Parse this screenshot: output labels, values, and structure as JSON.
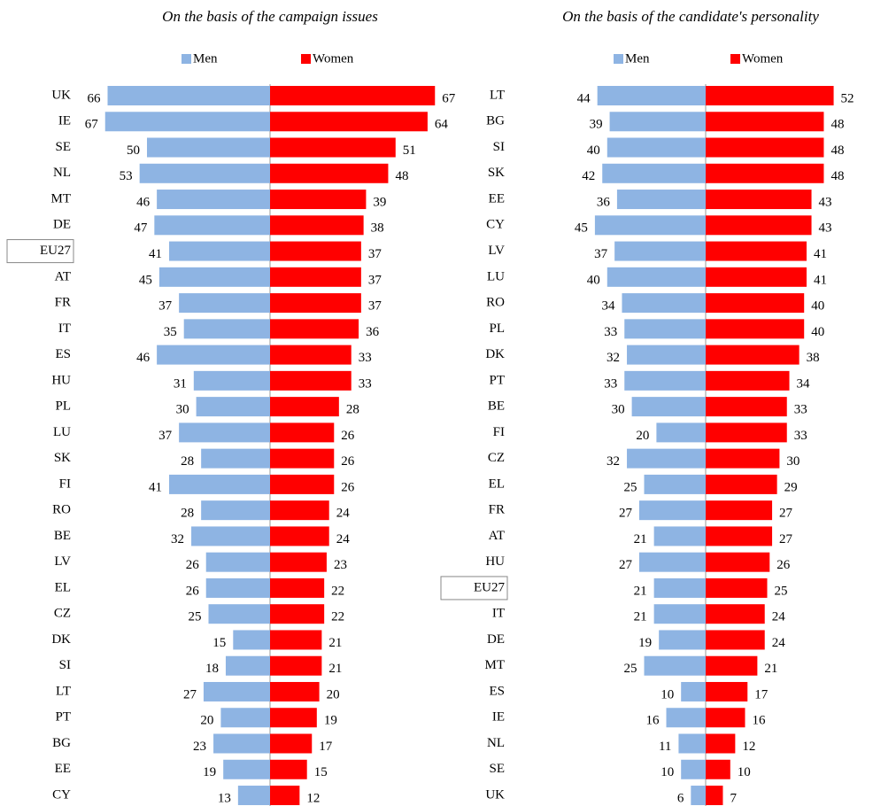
{
  "chart_data": [
    {
      "type": "butterfly",
      "title": "On the basis of the campaign issues",
      "highlight": "EU27",
      "categories": [
        "UK",
        "IE",
        "SE",
        "NL",
        "MT",
        "DE",
        "EU27",
        "AT",
        "FR",
        "IT",
        "ES",
        "HU",
        "PL",
        "LU",
        "SK",
        "FI",
        "RO",
        "BE",
        "LV",
        "EL",
        "CZ",
        "DK",
        "SI",
        "LT",
        "PT",
        "BG",
        "EE",
        "CY"
      ],
      "series": [
        {
          "name": "Men",
          "color": "#8eb4e3",
          "values": [
            66,
            67,
            50,
            53,
            46,
            47,
            41,
            45,
            37,
            35,
            46,
            31,
            30,
            37,
            28,
            41,
            28,
            32,
            26,
            26,
            25,
            15,
            18,
            27,
            20,
            23,
            19,
            13
          ]
        },
        {
          "name": "Women",
          "color": "#ff0000",
          "values": [
            67,
            64,
            51,
            48,
            39,
            38,
            37,
            37,
            37,
            36,
            33,
            33,
            28,
            26,
            26,
            26,
            24,
            24,
            23,
            22,
            22,
            21,
            21,
            20,
            19,
            17,
            15,
            12
          ]
        }
      ]
    },
    {
      "type": "butterfly",
      "title": "On the basis of the candidate's personality",
      "highlight": "EU27",
      "categories": [
        "LT",
        "BG",
        "SI",
        "SK",
        "EE",
        "CY",
        "LV",
        "LU",
        "RO",
        "PL",
        "DK",
        "PT",
        "BE",
        "FI",
        "CZ",
        "EL",
        "FR",
        "AT",
        "HU",
        "EU27",
        "IT",
        "DE",
        "MT",
        "ES",
        "IE",
        "NL",
        "SE",
        "UK"
      ],
      "series": [
        {
          "name": "Men",
          "color": "#8eb4e3",
          "values": [
            44,
            39,
            40,
            42,
            36,
            45,
            37,
            40,
            34,
            33,
            32,
            33,
            30,
            20,
            32,
            25,
            27,
            21,
            27,
            21,
            21,
            19,
            25,
            10,
            16,
            11,
            10,
            6
          ]
        },
        {
          "name": "Women",
          "color": "#ff0000",
          "values": [
            52,
            48,
            48,
            48,
            43,
            43,
            41,
            41,
            40,
            40,
            38,
            34,
            33,
            33,
            30,
            29,
            27,
            27,
            26,
            25,
            24,
            24,
            21,
            17,
            16,
            12,
            10,
            7
          ]
        }
      ]
    }
  ]
}
